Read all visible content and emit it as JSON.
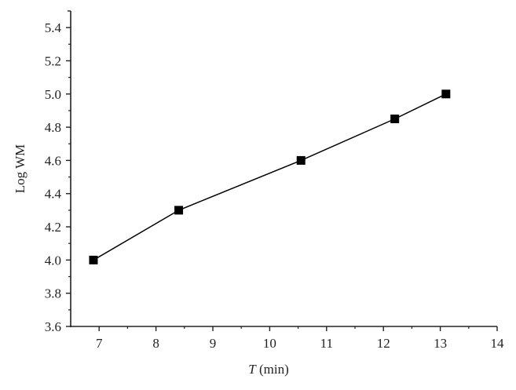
{
  "chart_data": {
    "type": "line",
    "title": "",
    "xlabel": "T (min)",
    "xlabel_italic_part": "T",
    "xlabel_rest": " (min)",
    "ylabel": "Log WM",
    "xlim": [
      6.5,
      14
    ],
    "ylim": [
      3.6,
      5.5
    ],
    "x_ticks": [
      7,
      8,
      9,
      10,
      11,
      12,
      13,
      14
    ],
    "y_ticks": [
      "3.6",
      "3.8",
      "4.0",
      "4.2",
      "4.4",
      "4.6",
      "4.8",
      "5.0",
      "5.2",
      "5.4"
    ],
    "grid": false,
    "legend": null,
    "series": [
      {
        "name": "Log WM",
        "marker": "square",
        "color": "#000000",
        "x": [
          6.9,
          8.4,
          10.55,
          12.2,
          13.1
        ],
        "y": [
          4.0,
          4.3,
          4.6,
          4.85,
          5.0
        ]
      }
    ]
  }
}
